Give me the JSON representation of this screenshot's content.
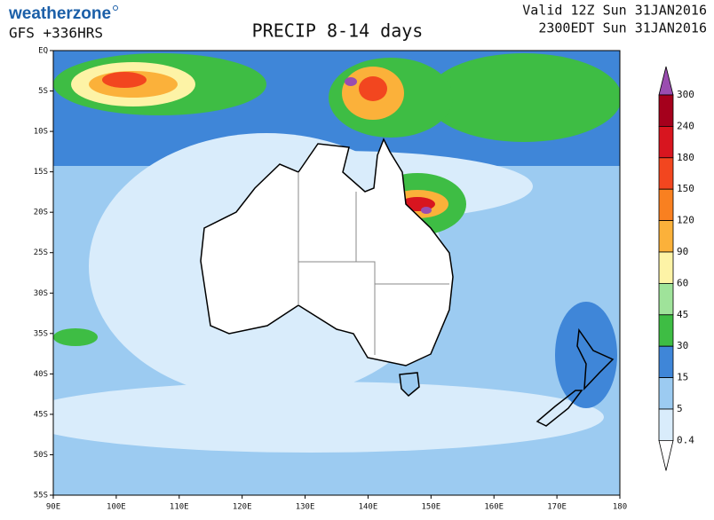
{
  "header": {
    "brand": "weatherzone",
    "model": "GFS +336HRS",
    "title": "PRECIP 8-14 days",
    "valid": [
      "Valid 12Z Sun 31JAN2016",
      "2300EDT Sun 31JAN2016"
    ]
  },
  "map": {
    "lat_labels": [
      "EQ",
      "5S",
      "10S",
      "15S",
      "20S",
      "25S",
      "30S",
      "35S",
      "40S",
      "45S",
      "50S",
      "55S"
    ],
    "lon_labels": [
      "90E",
      "100E",
      "110E",
      "120E",
      "130E",
      "140E",
      "150E",
      "160E",
      "170E",
      "180"
    ]
  },
  "legend": {
    "levels": [
      300,
      240,
      180,
      150,
      120,
      90,
      60,
      45,
      30,
      15,
      5,
      0.4
    ],
    "colors": [
      "#9a4db0",
      "#a5001c",
      "#d8151f",
      "#f2461f",
      "#f98020",
      "#fbb13a",
      "#fdf3a6",
      "#9fe39a",
      "#3ebd44",
      "#3f86d8",
      "#9ccbf1",
      "#d9ecfb",
      "#ffffff"
    ]
  }
}
